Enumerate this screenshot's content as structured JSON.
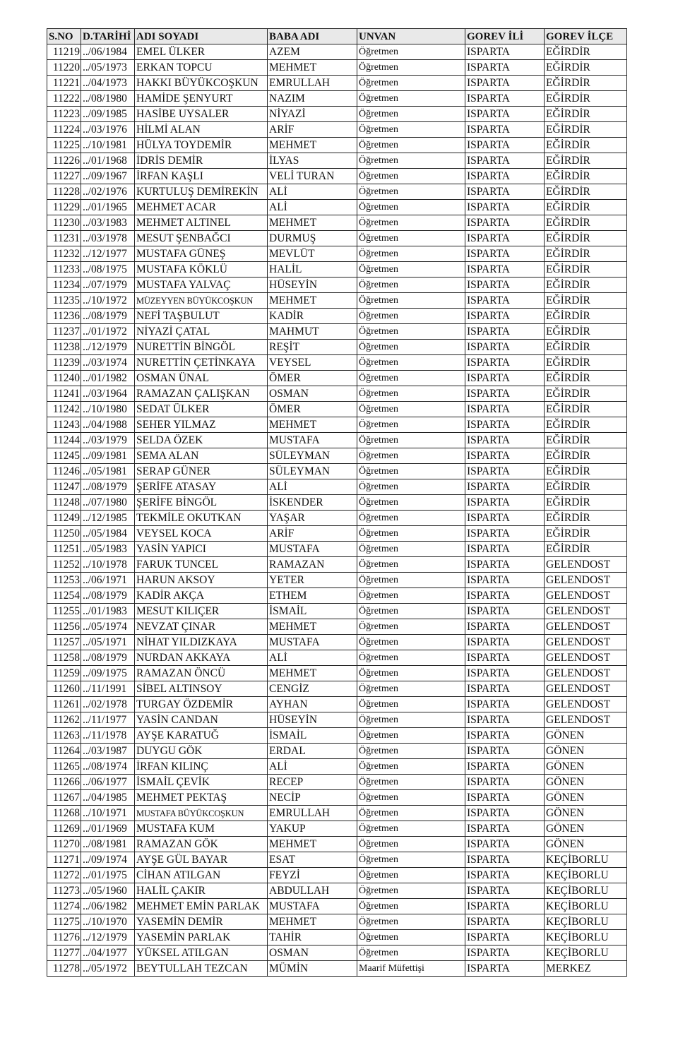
{
  "table": {
    "headers": [
      "S.NO",
      "D.TARİHİ",
      "ADI SOYADI",
      "BABA ADI",
      "UNVAN",
      "GOREV İLİ",
      "GOREV İLÇE"
    ],
    "rows": [
      [
        "11219",
        "../06/1984",
        "EMEL ÜLKER",
        "AZEM",
        "Öğretmen",
        "ISPARTA",
        "EĞİRDİR"
      ],
      [
        "11220",
        "../05/1973",
        "ERKAN TOPCU",
        "MEHMET",
        "Öğretmen",
        "ISPARTA",
        "EĞİRDİR"
      ],
      [
        "11221",
        "../04/1973",
        "HAKKI BÜYÜKCOŞKUN",
        "EMRULLAH",
        "Öğretmen",
        "ISPARTA",
        "EĞİRDİR"
      ],
      [
        "11222",
        "../08/1980",
        "HAMİDE ŞENYURT",
        "NAZIM",
        "Öğretmen",
        "ISPARTA",
        "EĞİRDİR"
      ],
      [
        "11223",
        "../09/1985",
        "HASİBE UYSALER",
        "NİYAZİ",
        "Öğretmen",
        "ISPARTA",
        "EĞİRDİR"
      ],
      [
        "11224",
        "../03/1976",
        "HİLMİ ALAN",
        "ARİF",
        "Öğretmen",
        "ISPARTA",
        "EĞİRDİR"
      ],
      [
        "11225",
        "../10/1981",
        "HÜLYA TOYDEMİR",
        "MEHMET",
        "Öğretmen",
        "ISPARTA",
        "EĞİRDİR"
      ],
      [
        "11226",
        "../01/1968",
        "İDRİS DEMİR",
        "İLYAS",
        "Öğretmen",
        "ISPARTA",
        "EĞİRDİR"
      ],
      [
        "11227",
        "../09/1967",
        "İRFAN KAŞLI",
        "VELİ TURAN",
        "Öğretmen",
        "ISPARTA",
        "EĞİRDİR"
      ],
      [
        "11228",
        "../02/1976",
        "KURTULUŞ DEMİREKİN",
        "ALİ",
        "Öğretmen",
        "ISPARTA",
        "EĞİRDİR"
      ],
      [
        "11229",
        "../01/1965",
        "MEHMET ACAR",
        "ALİ",
        "Öğretmen",
        "ISPARTA",
        "EĞİRDİR"
      ],
      [
        "11230",
        "../03/1983",
        "MEHMET ALTINEL",
        "MEHMET",
        "Öğretmen",
        "ISPARTA",
        "EĞİRDİR"
      ],
      [
        "11231",
        "../03/1978",
        "MESUT ŞENBAĞCI",
        "DURMUŞ",
        "Öğretmen",
        "ISPARTA",
        "EĞİRDİR"
      ],
      [
        "11232",
        "../12/1977",
        "MUSTAFA GÜNEŞ",
        "MEVLÜT",
        "Öğretmen",
        "ISPARTA",
        "EĞİRDİR"
      ],
      [
        "11233",
        "../08/1975",
        "MUSTAFA KÖKLÜ",
        "HALİL",
        "Öğretmen",
        "ISPARTA",
        "EĞİRDİR"
      ],
      [
        "11234",
        "../07/1979",
        "MUSTAFA YALVAÇ",
        "HÜSEYİN",
        "Öğretmen",
        "ISPARTA",
        "EĞİRDİR"
      ],
      [
        "11235",
        "../10/1972",
        "MÜZEYYEN BÜYÜKCOŞKUN",
        "MEHMET",
        "Öğretmen",
        "ISPARTA",
        "EĞİRDİR"
      ],
      [
        "11236",
        "../08/1979",
        "NEFİ TAŞBULUT",
        "KADİR",
        "Öğretmen",
        "ISPARTA",
        "EĞİRDİR"
      ],
      [
        "11237",
        "../01/1972",
        "NİYAZİ ÇATAL",
        "MAHMUT",
        "Öğretmen",
        "ISPARTA",
        "EĞİRDİR"
      ],
      [
        "11238",
        "../12/1979",
        "NURETTİN BİNGÖL",
        "REŞİT",
        "Öğretmen",
        "ISPARTA",
        "EĞİRDİR"
      ],
      [
        "11239",
        "../03/1974",
        "NURETTİN ÇETİNKAYA",
        "VEYSEL",
        "Öğretmen",
        "ISPARTA",
        "EĞİRDİR"
      ],
      [
        "11240",
        "../01/1982",
        "OSMAN ÜNAL",
        "ÖMER",
        "Öğretmen",
        "ISPARTA",
        "EĞİRDİR"
      ],
      [
        "11241",
        "../03/1964",
        "RAMAZAN ÇALIŞKAN",
        "OSMAN",
        "Öğretmen",
        "ISPARTA",
        "EĞİRDİR"
      ],
      [
        "11242",
        "../10/1980",
        "SEDAT ÜLKER",
        "ÖMER",
        "Öğretmen",
        "ISPARTA",
        "EĞİRDİR"
      ],
      [
        "11243",
        "../04/1988",
        "SEHER YILMAZ",
        "MEHMET",
        "Öğretmen",
        "ISPARTA",
        "EĞİRDİR"
      ],
      [
        "11244",
        "../03/1979",
        "SELDA ÖZEK",
        "MUSTAFA",
        "Öğretmen",
        "ISPARTA",
        "EĞİRDİR"
      ],
      [
        "11245",
        "../09/1981",
        "SEMA ALAN",
        "SÜLEYMAN",
        "Öğretmen",
        "ISPARTA",
        "EĞİRDİR"
      ],
      [
        "11246",
        "../05/1981",
        "SERAP GÜNER",
        "SÜLEYMAN",
        "Öğretmen",
        "ISPARTA",
        "EĞİRDİR"
      ],
      [
        "11247",
        "../08/1979",
        "ŞERİFE ATASAY",
        "ALİ",
        "Öğretmen",
        "ISPARTA",
        "EĞİRDİR"
      ],
      [
        "11248",
        "../07/1980",
        "ŞERİFE BİNGÖL",
        "İSKENDER",
        "Öğretmen",
        "ISPARTA",
        "EĞİRDİR"
      ],
      [
        "11249",
        "../12/1985",
        "TEKMİLE OKUTKAN",
        "YAŞAR",
        "Öğretmen",
        "ISPARTA",
        "EĞİRDİR"
      ],
      [
        "11250",
        "../05/1984",
        "VEYSEL KOCA",
        "ARİF",
        "Öğretmen",
        "ISPARTA",
        "EĞİRDİR"
      ],
      [
        "11251",
        "../05/1983",
        "YASİN YAPICI",
        "MUSTAFA",
        "Öğretmen",
        "ISPARTA",
        "EĞİRDİR"
      ],
      [
        "11252",
        "../10/1978",
        "FARUK TUNCEL",
        "RAMAZAN",
        "Öğretmen",
        "ISPARTA",
        "GELENDOST"
      ],
      [
        "11253",
        "../06/1971",
        "HARUN AKSOY",
        "YETER",
        "Öğretmen",
        "ISPARTA",
        "GELENDOST"
      ],
      [
        "11254",
        "../08/1979",
        "KADİR AKÇA",
        "ETHEM",
        "Öğretmen",
        "ISPARTA",
        "GELENDOST"
      ],
      [
        "11255",
        "../01/1983",
        "MESUT KILIÇER",
        "İSMAİL",
        "Öğretmen",
        "ISPARTA",
        "GELENDOST"
      ],
      [
        "11256",
        "../05/1974",
        "NEVZAT ÇINAR",
        "MEHMET",
        "Öğretmen",
        "ISPARTA",
        "GELENDOST"
      ],
      [
        "11257",
        "../05/1971",
        "NİHAT YILDIZKAYA",
        "MUSTAFA",
        "Öğretmen",
        "ISPARTA",
        "GELENDOST"
      ],
      [
        "11258",
        "../08/1979",
        "NURDAN AKKAYA",
        "ALİ",
        "Öğretmen",
        "ISPARTA",
        "GELENDOST"
      ],
      [
        "11259",
        "../09/1975",
        "RAMAZAN ÖNCÜ",
        "MEHMET",
        "Öğretmen",
        "ISPARTA",
        "GELENDOST"
      ],
      [
        "11260",
        "../11/1991",
        "SİBEL ALTINSOY",
        "CENGİZ",
        "Öğretmen",
        "ISPARTA",
        "GELENDOST"
      ],
      [
        "11261",
        "../02/1978",
        "TURGAY ÖZDEMİR",
        "AYHAN",
        "Öğretmen",
        "ISPARTA",
        "GELENDOST"
      ],
      [
        "11262",
        "../11/1977",
        "YASİN CANDAN",
        "HÜSEYİN",
        "Öğretmen",
        "ISPARTA",
        "GELENDOST"
      ],
      [
        "11263",
        "../11/1978",
        "AYŞE KARATUĞ",
        "İSMAİL",
        "Öğretmen",
        "ISPARTA",
        "GÖNEN"
      ],
      [
        "11264",
        "../03/1987",
        "DUYGU GÖK",
        "ERDAL",
        "Öğretmen",
        "ISPARTA",
        "GÖNEN"
      ],
      [
        "11265",
        "../08/1974",
        "İRFAN KILINÇ",
        "ALİ",
        "Öğretmen",
        "ISPARTA",
        "GÖNEN"
      ],
      [
        "11266",
        "../06/1977",
        "İSMAİL ÇEVİK",
        "RECEP",
        "Öğretmen",
        "ISPARTA",
        "GÖNEN"
      ],
      [
        "11267",
        "../04/1985",
        "MEHMET PEKTAŞ",
        "NECİP",
        "Öğretmen",
        "ISPARTA",
        "GÖNEN"
      ],
      [
        "11268",
        "../10/1971",
        "MUSTAFA BÜYÜKCOŞKUN",
        "EMRULLAH",
        "Öğretmen",
        "ISPARTA",
        "GÖNEN"
      ],
      [
        "11269",
        "../01/1969",
        "MUSTAFA KUM",
        "YAKUP",
        "Öğretmen",
        "ISPARTA",
        "GÖNEN"
      ],
      [
        "11270",
        "../08/1981",
        "RAMAZAN GÖK",
        "MEHMET",
        "Öğretmen",
        "ISPARTA",
        "GÖNEN"
      ],
      [
        "11271",
        "../09/1974",
        "AYŞE GÜL BAYAR",
        "ESAT",
        "Öğretmen",
        "ISPARTA",
        "KEÇİBORLU"
      ],
      [
        "11272",
        "../01/1975",
        "CİHAN ATILGAN",
        "FEYZİ",
        "Öğretmen",
        "ISPARTA",
        "KEÇİBORLU"
      ],
      [
        "11273",
        "../05/1960",
        "HALİL ÇAKIR",
        "ABDULLAH",
        "Öğretmen",
        "ISPARTA",
        "KEÇİBORLU"
      ],
      [
        "11274",
        "../06/1982",
        "MEHMET EMİN PARLAK",
        "MUSTAFA",
        "Öğretmen",
        "ISPARTA",
        "KEÇİBORLU"
      ],
      [
        "11275",
        "../10/1970",
        "YASEMİN DEMİR",
        "MEHMET",
        "Öğretmen",
        "ISPARTA",
        "KEÇİBORLU"
      ],
      [
        "11276",
        "../12/1979",
        "YASEMİN PARLAK",
        "TAHİR",
        "Öğretmen",
        "ISPARTA",
        "KEÇİBORLU"
      ],
      [
        "11277",
        "../04/1977",
        "YÜKSEL ATILGAN",
        "OSMAN",
        "Öğretmen",
        "ISPARTA",
        "KEÇİBORLU"
      ],
      [
        "11278",
        "../05/1972",
        "BEYTULLAH TEZCAN",
        "MÜMİN",
        "Maarif Müfettişi",
        "ISPARTA",
        "MERKEZ"
      ]
    ]
  }
}
